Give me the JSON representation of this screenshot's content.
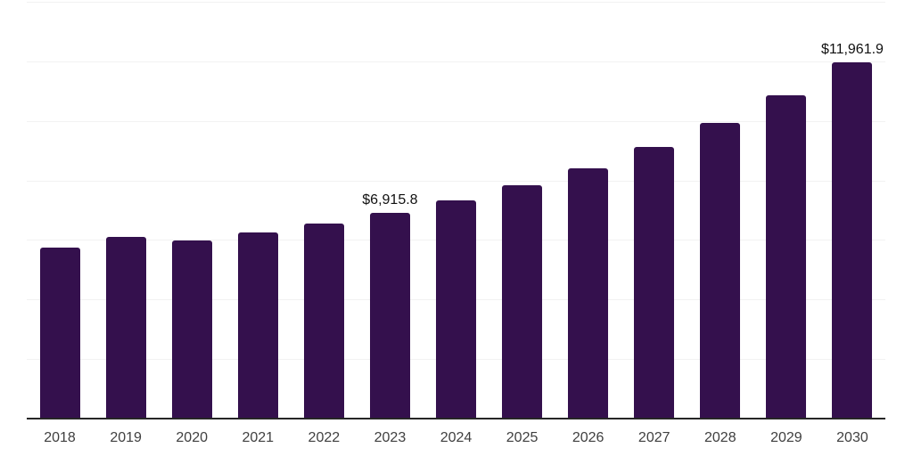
{
  "chart": {
    "background_color": "#ffffff",
    "bar_color": "#34104D",
    "gridline_color": "#f2f2f2",
    "axis_line_color": "#262626",
    "x_tick_label_color": "#3f3f3f",
    "data_label_color": "#111111"
  },
  "chart_data": {
    "type": "bar",
    "title": "",
    "xlabel": "",
    "ylabel": "",
    "categories": [
      "2018",
      "2019",
      "2020",
      "2021",
      "2022",
      "2023",
      "2024",
      "2025",
      "2026",
      "2027",
      "2028",
      "2029",
      "2030"
    ],
    "values": [
      5750,
      6090,
      5970,
      6240,
      6540,
      6915.8,
      7330,
      7830,
      8420,
      9130,
      9940,
      10850,
      11961.9
    ],
    "value_labels": [
      "",
      "",
      "",
      "",
      "",
      "$6,915.8",
      "",
      "",
      "",
      "",
      "",
      "",
      "$11,961.9"
    ],
    "labeled_points": [
      {
        "category": "2023",
        "label": "$6,915.8",
        "value": 6915.8
      },
      {
        "category": "2030",
        "label": "$11,961.9",
        "value": 11961.9
      }
    ],
    "ylim": [
      0,
      14000
    ],
    "gridline_interval": 2000,
    "grid": "horizontal",
    "y_axis_tick_labels": "hidden",
    "legend": "none"
  }
}
